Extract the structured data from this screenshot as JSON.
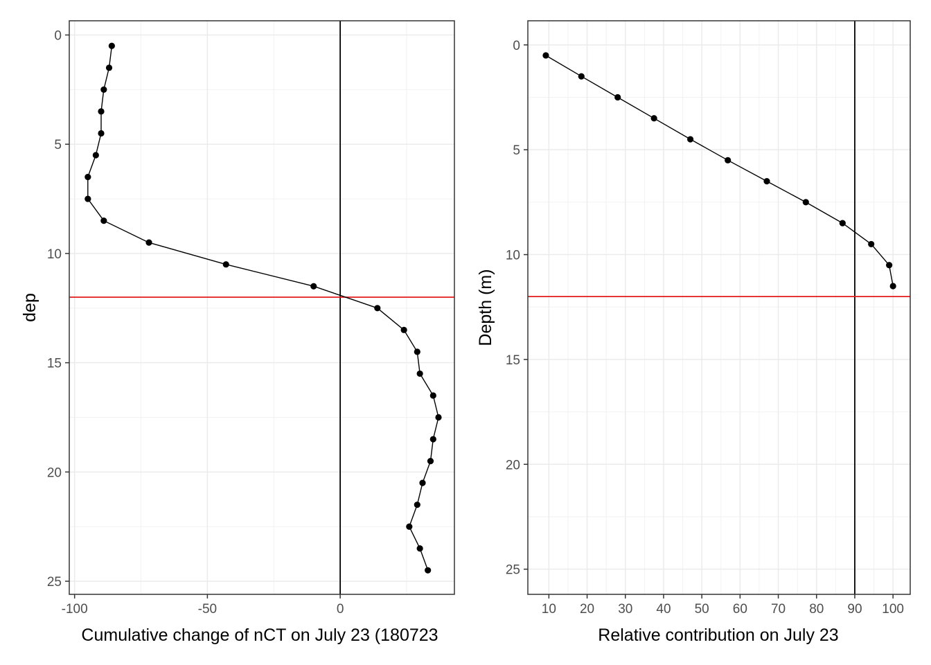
{
  "chart_data": [
    {
      "type": "line",
      "xlabel": "Cumulative change of nCT on July 23 (180723",
      "ylabel": "dep",
      "xlim": [
        -102,
        43
      ],
      "ylim": [
        25.6,
        -0.65
      ],
      "y_reversed": true,
      "x_ticks": [
        -100,
        -50,
        0
      ],
      "y_ticks": [
        0,
        5,
        10,
        15,
        20,
        25
      ],
      "grid": true,
      "legend": "none",
      "vline_x": 0,
      "hline_y": 12,
      "line_color": "#000000",
      "hline_color": "#e31a1c",
      "series": [
        {
          "x": [
            -86,
            -87,
            -89,
            -90,
            -90,
            -92,
            -95,
            -95,
            -89,
            -72,
            -43,
            -10,
            14,
            24,
            29,
            30,
            35,
            37,
            35,
            34,
            31,
            29,
            26,
            30,
            33
          ],
          "y": [
            0.5,
            1.5,
            2.5,
            3.5,
            4.5,
            5.5,
            6.5,
            7.5,
            8.5,
            9.5,
            10.5,
            11.5,
            12.5,
            13.5,
            14.5,
            15.5,
            16.5,
            17.5,
            18.5,
            19.5,
            20.5,
            21.5,
            22.5,
            23.5,
            24.5
          ]
        }
      ]
    },
    {
      "type": "line",
      "xlabel": "Relative contribution on July 23",
      "ylabel": "Depth (m)",
      "xlim": [
        4.5,
        104.5
      ],
      "ylim": [
        26.2,
        -1.15
      ],
      "y_reversed": true,
      "x_ticks": [
        10,
        20,
        30,
        40,
        50,
        60,
        70,
        80,
        90,
        100
      ],
      "y_ticks": [
        0,
        5,
        10,
        15,
        20,
        25
      ],
      "grid": true,
      "legend": "none",
      "vline_x": 90,
      "hline_y": 12,
      "line_color": "#000000",
      "hline_color": "#e31a1c",
      "series": [
        {
          "x": [
            9.2,
            18.5,
            28,
            37.5,
            47,
            56.8,
            67,
            77.2,
            86.8,
            94.3,
            99,
            100
          ],
          "y": [
            0.5,
            1.5,
            2.5,
            3.5,
            4.5,
            5.5,
            6.5,
            7.5,
            8.5,
            9.5,
            10.5,
            11.5
          ]
        }
      ]
    }
  ]
}
